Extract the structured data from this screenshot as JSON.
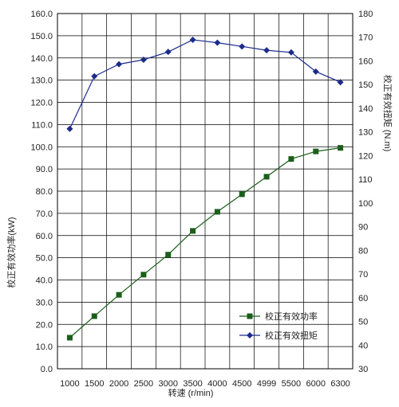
{
  "chart_data": {
    "type": "line",
    "title": "",
    "xlabel": "转速 (r/min)",
    "ylabel_left": "校正有效功率(kW)",
    "ylabel_right": "校正有效扭矩 (N.m)",
    "x_categories": [
      "1000",
      "1500",
      "2000",
      "2500",
      "3000",
      "3500",
      "4000",
      "4500",
      "4999",
      "5500",
      "6000",
      "6300"
    ],
    "ylim_left": [
      0,
      160
    ],
    "ylim_right": [
      30,
      180
    ],
    "yticks_left": [
      "0.0",
      "10.0",
      "20.0",
      "30.0",
      "40.0",
      "50.0",
      "60.0",
      "70.0",
      "80.0",
      "90.0",
      "100.0",
      "110.0",
      "120.0",
      "130.0",
      "140.0",
      "150.0",
      "160.0"
    ],
    "yticks_right": [
      "30",
      "40",
      "50",
      "60",
      "70",
      "80",
      "90",
      "100",
      "110",
      "120",
      "130",
      "140",
      "150",
      "160",
      "170",
      "180"
    ],
    "grid": true,
    "legend_position": "bottom-right",
    "series": [
      {
        "name": "校正有效功率",
        "axis": "left",
        "marker": "square",
        "color": "#1a5e1a",
        "values": [
          14.0,
          23.7,
          33.3,
          42.4,
          51.4,
          62.1,
          70.7,
          78.6,
          86.5,
          94.5,
          97.9,
          99.5
        ]
      },
      {
        "name": "校正有效扭矩",
        "axis": "right",
        "marker": "diamond",
        "color": "#1c2b8a",
        "values": [
          131.3,
          153.5,
          158.6,
          160.5,
          163.8,
          168.9,
          167.7,
          166.1,
          164.5,
          163.6,
          155.5,
          151.0
        ]
      }
    ]
  }
}
